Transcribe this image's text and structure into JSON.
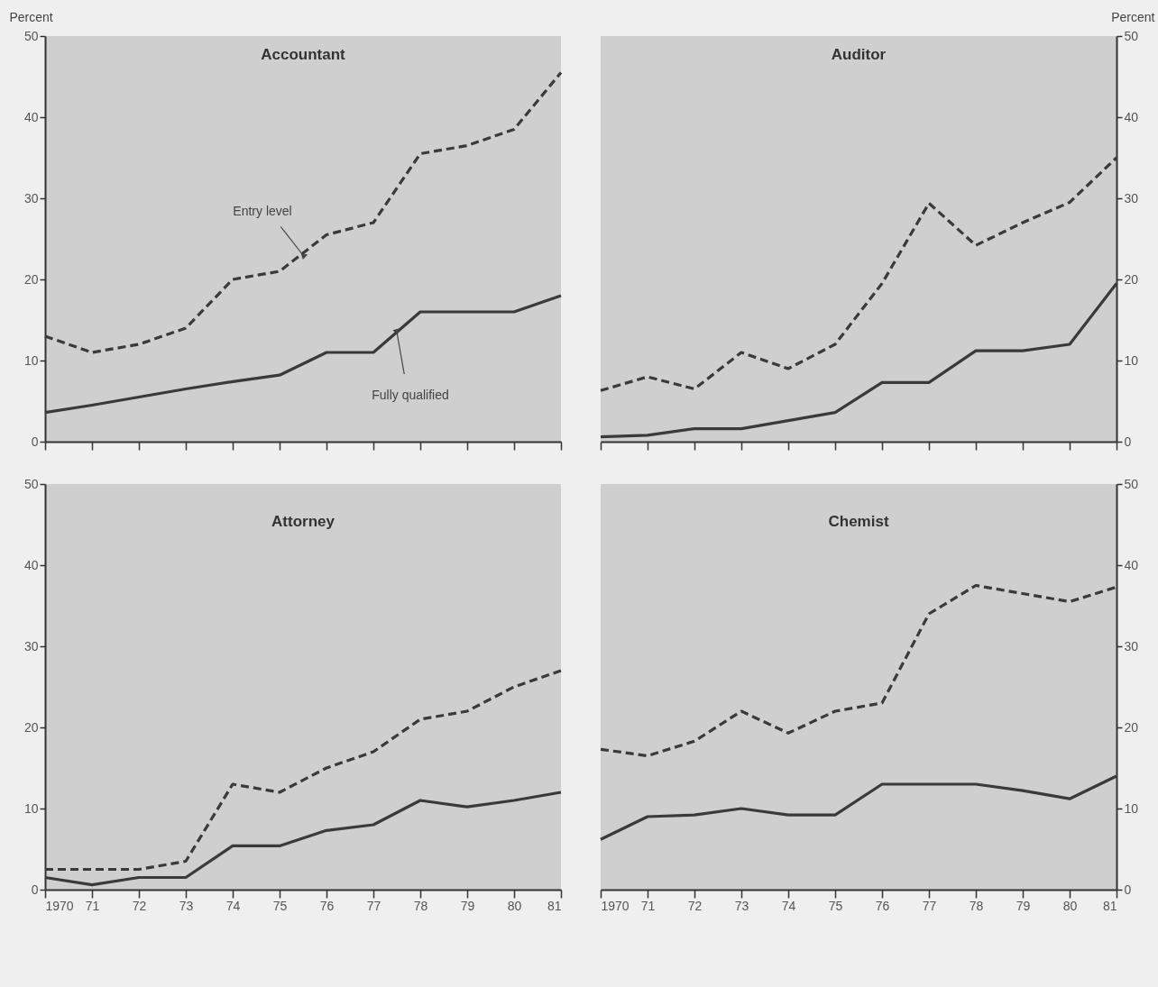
{
  "chart_data": [
    {
      "type": "line",
      "title": "Accountant",
      "ylabel": "Percent",
      "tick_labels": "y",
      "x": [
        1970,
        1971,
        1972,
        1973,
        1974,
        1975,
        1976,
        1977,
        1978,
        1979,
        1980,
        1981
      ],
      "xlim": [
        1970,
        1981
      ],
      "xticks": [
        {
          "value": 1970,
          "label": null
        },
        {
          "value": 1971,
          "label": null
        },
        {
          "value": 1972,
          "label": null
        },
        {
          "value": 1973,
          "label": null
        },
        {
          "value": 1974,
          "label": null
        },
        {
          "value": 1975,
          "label": null
        },
        {
          "value": 1976,
          "label": null
        },
        {
          "value": 1977,
          "label": null
        },
        {
          "value": 1978,
          "label": null
        },
        {
          "value": 1979,
          "label": null
        },
        {
          "value": 1980,
          "label": null
        },
        {
          "value": 1981,
          "label": null
        }
      ],
      "ylim": [
        0,
        50
      ],
      "yticks": [
        0,
        10,
        20,
        30,
        40,
        50
      ],
      "series": [
        {
          "color": "#3a3a3a",
          "line_style": "dashed",
          "values": [
            13,
            11,
            12,
            14,
            20,
            21,
            25.5,
            27,
            35.5,
            36.5,
            38.5,
            45.5
          ]
        },
        {
          "color": "#3a3a3a",
          "line_style": "solid",
          "values": [
            3.6,
            4.5,
            5.5,
            6.5,
            7.4,
            8.2,
            11,
            11,
            16,
            16,
            16,
            18
          ]
        }
      ],
      "annotations": [
        {
          "text": "Entry level",
          "x": 1975.5,
          "y": 23
        },
        {
          "text": "Fully qualified",
          "x": 1977.5,
          "y": 13.5
        }
      ]
    },
    {
      "type": "line",
      "title": "Auditor",
      "ylabel": "Percent",
      "tick_labels": "y",
      "x": [
        1970,
        1971,
        1972,
        1973,
        1974,
        1975,
        1976,
        1977,
        1978,
        1979,
        1980,
        1981
      ],
      "xlim": [
        1970,
        1981
      ],
      "xticks": [
        {
          "value": 1970,
          "label": null
        },
        {
          "value": 1971,
          "label": null
        },
        {
          "value": 1972,
          "label": null
        },
        {
          "value": 1973,
          "label": null
        },
        {
          "value": 1974,
          "label": null
        },
        {
          "value": 1975,
          "label": null
        },
        {
          "value": 1976,
          "label": null
        },
        {
          "value": 1977,
          "label": null
        },
        {
          "value": 1978,
          "label": null
        },
        {
          "value": 1979,
          "label": null
        },
        {
          "value": 1980,
          "label": null
        },
        {
          "value": 1981,
          "label": null
        }
      ],
      "ylim": [
        0,
        50
      ],
      "yticks": [
        0,
        10,
        20,
        30,
        40,
        50
      ],
      "series": [
        {
          "color": "#3a3a3a",
          "line_style": "dashed",
          "values": [
            6.3,
            8,
            6.5,
            11,
            9,
            12,
            19.5,
            29.4,
            24.2,
            27,
            29.5,
            35
          ]
        },
        {
          "color": "#3a3a3a",
          "line_style": "solid",
          "values": [
            0.6,
            0.8,
            1.6,
            1.6,
            2.6,
            3.6,
            7.3,
            7.3,
            11.2,
            11.2,
            12,
            19.5
          ]
        }
      ]
    },
    {
      "type": "line",
      "title": "Attorney",
      "x": [
        1970,
        1971,
        1972,
        1973,
        1974,
        1975,
        1976,
        1977,
        1978,
        1979,
        1980,
        1981
      ],
      "xlim": [
        1970,
        1981
      ],
      "xticks": [
        {
          "value": 1970,
          "label": "1970"
        },
        {
          "value": 1971,
          "label": "71"
        },
        {
          "value": 1972,
          "label": "72"
        },
        {
          "value": 1973,
          "label": "73"
        },
        {
          "value": 1974,
          "label": "74"
        },
        {
          "value": 1975,
          "label": "75"
        },
        {
          "value": 1976,
          "label": "76"
        },
        {
          "value": 1977,
          "label": "77"
        },
        {
          "value": 1978,
          "label": "78"
        },
        {
          "value": 1979,
          "label": "79"
        },
        {
          "value": 1980,
          "label": "80"
        },
        {
          "value": 1981,
          "label": "81"
        }
      ],
      "ylim": [
        0,
        50
      ],
      "yticks": [
        0,
        10,
        20,
        30,
        40,
        50
      ],
      "series": [
        {
          "color": "#3a3a3a",
          "line_style": "dashed",
          "values": [
            2.5,
            2.5,
            2.5,
            3.5,
            13,
            12,
            15,
            17,
            21,
            22,
            25,
            27
          ]
        },
        {
          "color": "#3a3a3a",
          "line_style": "solid",
          "values": [
            1.5,
            0.6,
            1.5,
            1.5,
            5.4,
            5.4,
            7.3,
            8,
            11,
            10.2,
            11,
            12
          ]
        }
      ]
    },
    {
      "type": "line",
      "title": "Chemist",
      "x": [
        1970,
        1971,
        1972,
        1973,
        1974,
        1975,
        1976,
        1977,
        1978,
        1979,
        1980,
        1981
      ],
      "xlim": [
        1970,
        1981
      ],
      "xticks": [
        {
          "value": 1970,
          "label": "1970"
        },
        {
          "value": 1971,
          "label": "71"
        },
        {
          "value": 1972,
          "label": "72"
        },
        {
          "value": 1973,
          "label": "73"
        },
        {
          "value": 1974,
          "label": "74"
        },
        {
          "value": 1975,
          "label": "75"
        },
        {
          "value": 1976,
          "label": "76"
        },
        {
          "value": 1977,
          "label": "77"
        },
        {
          "value": 1978,
          "label": "78"
        },
        {
          "value": 1979,
          "label": "79"
        },
        {
          "value": 1980,
          "label": "80"
        },
        {
          "value": 1981,
          "label": "81"
        }
      ],
      "ylim": [
        0,
        50
      ],
      "yticks": [
        0,
        10,
        20,
        30,
        40,
        50
      ],
      "series": [
        {
          "color": "#3a3a3a",
          "line_style": "dashed",
          "values": [
            17.3,
            16.5,
            18.3,
            22,
            19.3,
            22,
            23,
            34,
            37.5,
            36.5,
            35.5,
            37.3
          ]
        },
        {
          "color": "#3a3a3a",
          "line_style": "solid",
          "values": [
            6.2,
            9,
            9.2,
            10,
            9.2,
            9.2,
            13,
            13,
            13,
            12.2,
            11.2,
            14
          ]
        }
      ]
    }
  ]
}
